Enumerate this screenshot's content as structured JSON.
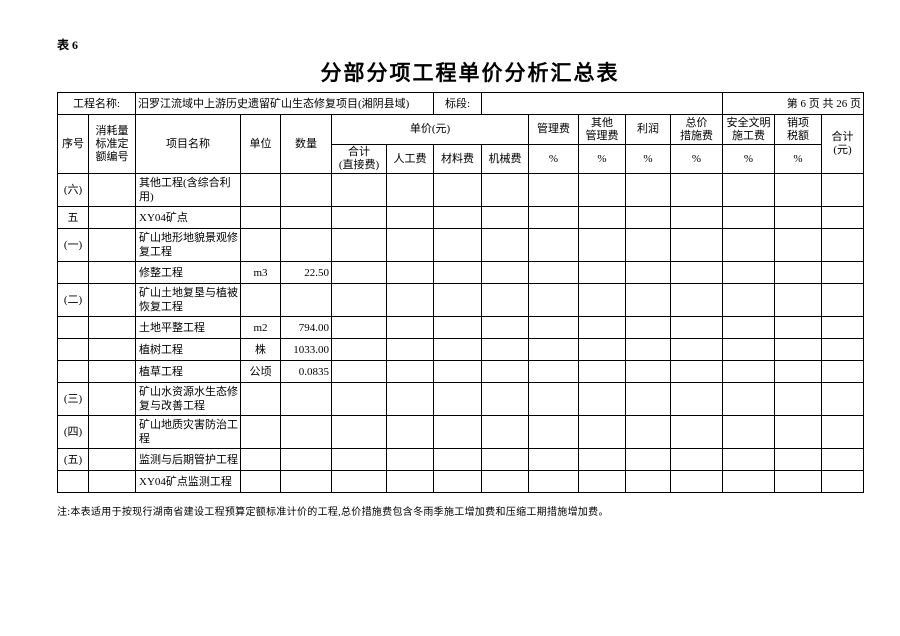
{
  "page": {
    "table_label": "表 6",
    "title": "分部分项工程单价分析汇总表",
    "note": "注:本表适用于按现行湖南省建设工程预算定额标准计价的工程,总价措施费包含冬雨季施工增加费和压缩工期措施增加费。"
  },
  "info": {
    "project_label": "工程名称:",
    "project_name": "汨罗江流域中上游历史遗留矿山生态修复项目(湘阴县域)",
    "section_label": "标段:",
    "section_value": "",
    "page_info": "第 6 页 共 26 页"
  },
  "header": {
    "seq": "序号",
    "quota_code": "消耗量\n标准定\n额编号",
    "item_name": "项目名称",
    "unit": "单位",
    "quantity": "数量",
    "unit_price_group": "单价(元)",
    "direct_total": "合计\n(直接费)",
    "labor": "人工费",
    "material": "材料费",
    "machinery": "机械费",
    "management": "管理费",
    "other_management": "其他\n管理费",
    "profit": "利润",
    "total_measure": "总价\n措施费",
    "safety": "安全文明\n施工费",
    "output_tax": "销项\n税额",
    "total": "合计\n(元)",
    "percent": "%"
  },
  "rows": [
    {
      "no": "(六)",
      "code": "",
      "name": "其他工程(含综合利用)",
      "unit": "",
      "qty": ""
    },
    {
      "no": "五",
      "code": "",
      "name": "XY04矿点",
      "unit": "",
      "qty": ""
    },
    {
      "no": "(一)",
      "code": "",
      "name": "矿山地形地貌景观修复工程",
      "unit": "",
      "qty": ""
    },
    {
      "no": "",
      "code": "",
      "name": "修整工程",
      "unit": "m3",
      "qty": "22.50"
    },
    {
      "no": "(二)",
      "code": "",
      "name": "矿山土地复垦与植被恢复工程",
      "unit": "",
      "qty": ""
    },
    {
      "no": "",
      "code": "",
      "name": "土地平整工程",
      "unit": "m2",
      "qty": "794.00"
    },
    {
      "no": "",
      "code": "",
      "name": "植树工程",
      "unit": "株",
      "qty": "1033.00"
    },
    {
      "no": "",
      "code": "",
      "name": "植草工程",
      "unit": "公顷",
      "qty": "0.0835"
    },
    {
      "no": "(三)",
      "code": "",
      "name": "矿山水资源水生态修复与改善工程",
      "unit": "",
      "qty": ""
    },
    {
      "no": "(四)",
      "code": "",
      "name": "矿山地质灾害防治工程",
      "unit": "",
      "qty": ""
    },
    {
      "no": "(五)",
      "code": "",
      "name": "监测与后期管护工程",
      "unit": "",
      "qty": ""
    },
    {
      "no": "",
      "code": "",
      "name": "XY04矿点监测工程",
      "unit": "",
      "qty": ""
    }
  ]
}
